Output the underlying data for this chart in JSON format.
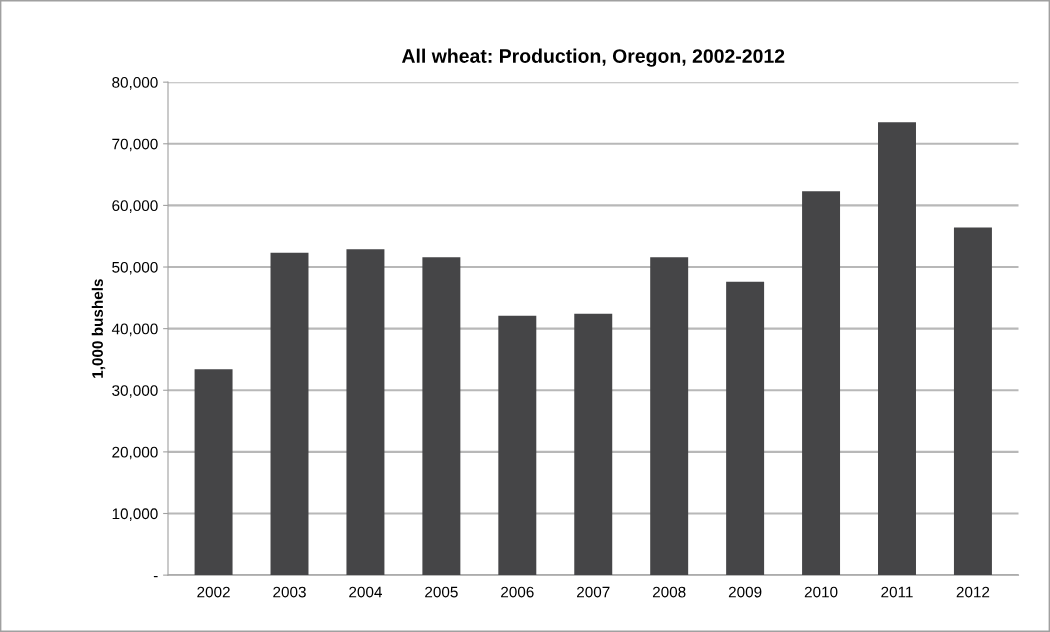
{
  "chart_data": {
    "type": "bar",
    "title": "All wheat: Production, Oregon, 2002-2012",
    "ylabel": "1,000 bushels",
    "categories": [
      "2002",
      "2003",
      "2004",
      "2005",
      "2006",
      "2007",
      "2008",
      "2009",
      "2010",
      "2011",
      "2012"
    ],
    "values": [
      33400,
      52300,
      52900,
      51600,
      42100,
      42400,
      51600,
      47600,
      62300,
      73500,
      56400
    ],
    "color": "#454547",
    "ylim": [
      0,
      80000
    ],
    "yticks": [
      {
        "value": 0,
        "label": "-"
      },
      {
        "value": 10000,
        "label": "10,000"
      },
      {
        "value": 20000,
        "label": "20,000"
      },
      {
        "value": 30000,
        "label": "30,000"
      },
      {
        "value": 40000,
        "label": "40,000"
      },
      {
        "value": 50000,
        "label": "50,000"
      },
      {
        "value": 60000,
        "label": "60,000"
      },
      {
        "value": 70000,
        "label": "70,000"
      },
      {
        "value": 80000,
        "label": "80,000"
      }
    ],
    "grid": "y"
  }
}
